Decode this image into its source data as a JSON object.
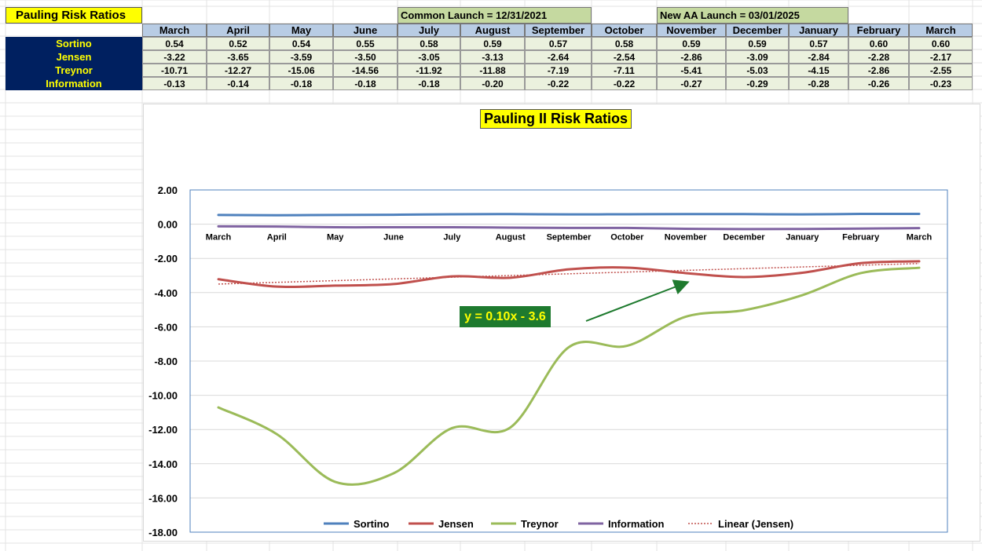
{
  "sheet": {
    "title": "Pauling Risk Ratios",
    "common_launch": "Common Launch = 12/31/2021",
    "new_aa_launch": "New AA Launch = 03/01/2025",
    "months": [
      "March",
      "April",
      "May",
      "June",
      "July",
      "August",
      "September",
      "October",
      "November",
      "December",
      "January",
      "February",
      "March"
    ],
    "rows": [
      {
        "label": "Sortino",
        "values": [
          "0.54",
          "0.52",
          "0.54",
          "0.55",
          "0.58",
          "0.59",
          "0.57",
          "0.58",
          "0.59",
          "0.59",
          "0.57",
          "0.60",
          "0.60"
        ]
      },
      {
        "label": "Jensen",
        "values": [
          "-3.22",
          "-3.65",
          "-3.59",
          "-3.50",
          "-3.05",
          "-3.13",
          "-2.64",
          "-2.54",
          "-2.86",
          "-3.09",
          "-2.84",
          "-2.28",
          "-2.17"
        ]
      },
      {
        "label": "Treynor",
        "values": [
          "-10.71",
          "-12.27",
          "-15.06",
          "-14.56",
          "-11.92",
          "-11.88",
          "-7.19",
          "-7.11",
          "-5.41",
          "-5.03",
          "-4.15",
          "-2.86",
          "-2.55"
        ]
      },
      {
        "label": "Information",
        "values": [
          "-0.13",
          "-0.14",
          "-0.18",
          "-0.18",
          "-0.18",
          "-0.20",
          "-0.22",
          "-0.22",
          "-0.27",
          "-0.29",
          "-0.28",
          "-0.26",
          "-0.23"
        ]
      }
    ]
  },
  "chart_data": {
    "type": "line",
    "title": "Pauling II Risk Ratios",
    "categories": [
      "March",
      "April",
      "May",
      "June",
      "July",
      "August",
      "September",
      "October",
      "November",
      "December",
      "January",
      "February",
      "March"
    ],
    "ylim": [
      -18,
      2
    ],
    "yticks": [
      "2.00",
      "0.00",
      "-2.00",
      "-4.00",
      "-6.00",
      "-8.00",
      "-10.00",
      "-12.00",
      "-14.00",
      "-16.00",
      "-18.00"
    ],
    "ytick_values": [
      2,
      0,
      -2,
      -4,
      -6,
      -8,
      -10,
      -12,
      -14,
      -16,
      -18
    ],
    "series": [
      {
        "name": "Sortino",
        "color": "#4f81bd",
        "values": [
          0.54,
          0.52,
          0.54,
          0.55,
          0.58,
          0.59,
          0.57,
          0.58,
          0.59,
          0.59,
          0.57,
          0.6,
          0.6
        ]
      },
      {
        "name": "Jensen",
        "color": "#c0504d",
        "values": [
          -3.22,
          -3.65,
          -3.59,
          -3.5,
          -3.05,
          -3.13,
          -2.64,
          -2.54,
          -2.86,
          -3.09,
          -2.84,
          -2.28,
          -2.17
        ]
      },
      {
        "name": "Treynor",
        "color": "#9bbb59",
        "values": [
          -10.71,
          -12.27,
          -15.06,
          -14.56,
          -11.92,
          -11.88,
          -7.19,
          -7.11,
          -5.41,
          -5.03,
          -4.15,
          -2.86,
          -2.55
        ]
      },
      {
        "name": "Information",
        "color": "#8064a2",
        "values": [
          -0.13,
          -0.14,
          -0.18,
          -0.18,
          -0.18,
          -0.2,
          -0.22,
          -0.22,
          -0.27,
          -0.29,
          -0.28,
          -0.26,
          -0.23
        ]
      }
    ],
    "trendline": {
      "name": "Linear (Jensen)",
      "color": "#c0504d",
      "slope": 0.1,
      "intercept": -3.6
    },
    "annotation": "y = 0.10x - 3.6",
    "grid": true,
    "legend": "bottom",
    "arrow_color": "#1e7a2e"
  }
}
